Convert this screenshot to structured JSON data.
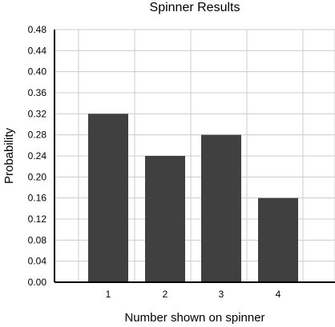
{
  "chart_data": {
    "type": "bar",
    "title": "Spinner Results",
    "xlabel": "Number shown on spinner",
    "ylabel": "Probability",
    "categories": [
      "1",
      "2",
      "3",
      "4"
    ],
    "values": [
      0.32,
      0.24,
      0.28,
      0.16
    ],
    "ylim": [
      0,
      0.48
    ],
    "yticks": [
      "0.00",
      "0.04",
      "0.08",
      "0.12",
      "0.16",
      "0.20",
      "0.24",
      "0.28",
      "0.32",
      "0.36",
      "0.40",
      "0.44",
      "0.48"
    ],
    "grid": true,
    "bar_color": "#404040",
    "grid_color": "#cccccc"
  }
}
